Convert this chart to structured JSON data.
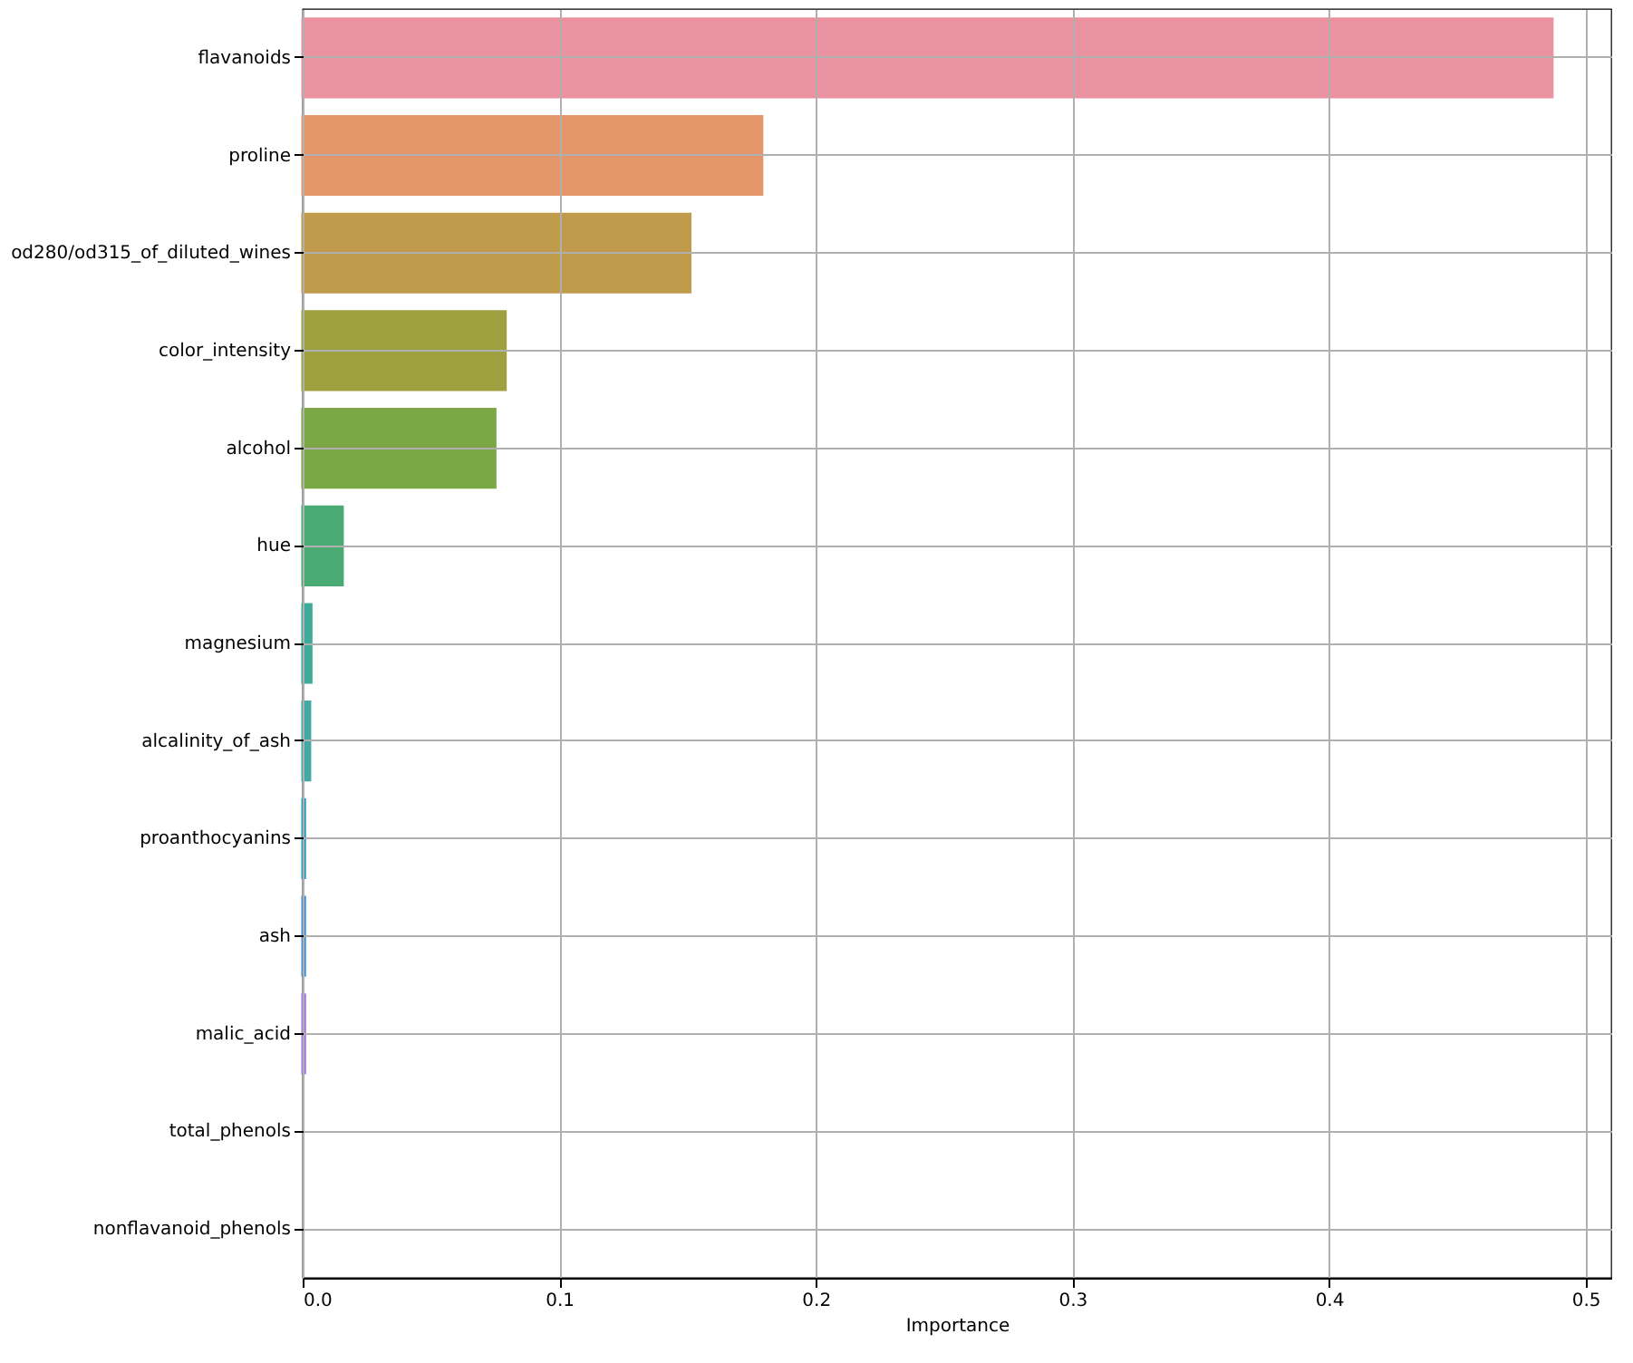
{
  "chart_data": {
    "type": "bar",
    "orientation": "horizontal",
    "xlabel": "Importance",
    "categories": [
      "flavanoids",
      "proline",
      "od280/od315_of_diluted_wines",
      "color_intensity",
      "alcohol",
      "hue",
      "magnesium",
      "alcalinity_of_ash",
      "proanthocyanins",
      "ash",
      "malic_acid",
      "total_phenols",
      "nonflavanoid_phenols"
    ],
    "values": [
      0.487,
      0.179,
      0.151,
      0.079,
      0.075,
      0.0155,
      0.0033,
      0.0028,
      0.0008,
      0.0008,
      0.0008,
      0,
      0
    ],
    "colors": [
      "#ea929f",
      "#e4956a",
      "#c09b4b",
      "#9fa040",
      "#7ba845",
      "#4aac74",
      "#3eab9a",
      "#42a9a5",
      "#2a9dbf",
      "#4a8ed9",
      "#a179e0",
      "#c66fd7",
      "#e26fb4"
    ],
    "xlim": [
      0,
      0.51
    ],
    "xticks": [
      {
        "value": 0,
        "label": "0.0"
      },
      0.1,
      0.2,
      0.3,
      0.4,
      0.5
    ],
    "grid": true
  }
}
